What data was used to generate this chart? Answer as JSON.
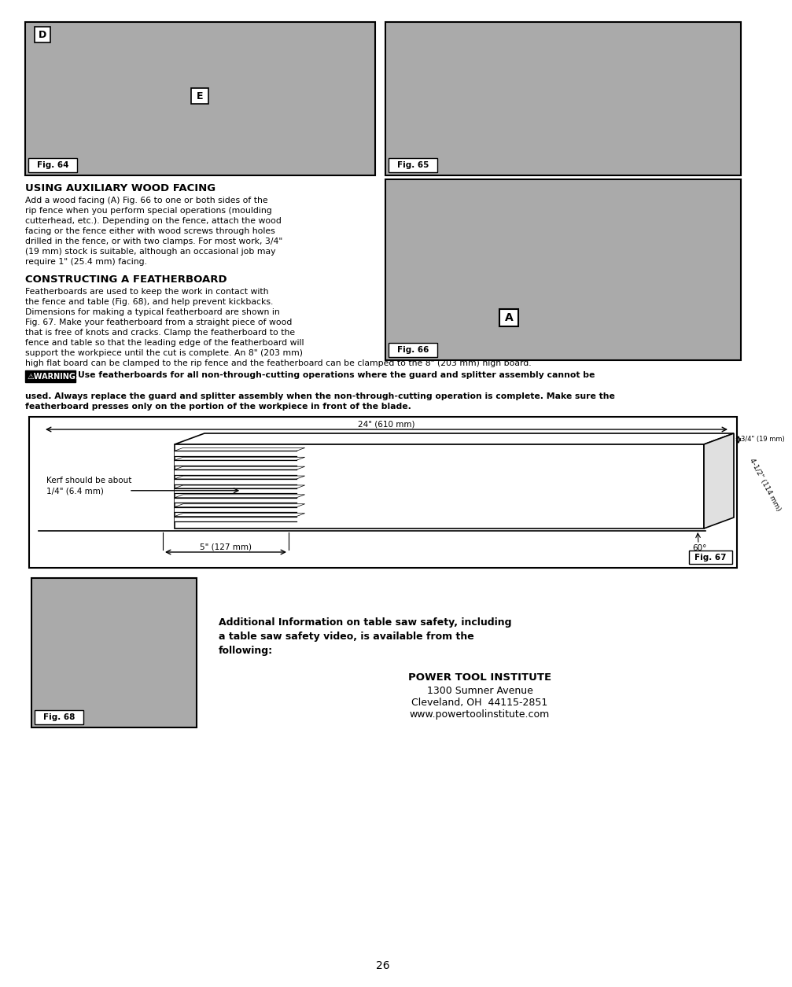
{
  "page_bg": "#ffffff",
  "border_color": "#000000",
  "page_number": "26",
  "section1_title": "USING AUXILIARY WOOD FACING",
  "section2_title": "CONSTRUCTING A FEATHERBOARD",
  "warning_label": "⚠WARNING:",
  "fig64_label": "Fig. 64",
  "fig65_label": "Fig. 65",
  "fig66_label": "Fig. 66",
  "fig67_label": "Fig. 67",
  "fig68_label": "Fig. 68",
  "label_D": "D",
  "label_E": "E",
  "label_A": "A",
  "dim_24": "24\" (610 mm)",
  "dim_5": "5\" (127 mm)",
  "dim_3_4": "3/4\" (19 mm)",
  "dim_4_1_2": "4-1/2\" (114 mm)",
  "dim_60": "60°",
  "kerf_text": "Kerf should be about\n1/4\" (6.4 mm)",
  "additional_info": "Additional Information on table saw safety, including\na table saw safety video, is available from the\nfollowing:",
  "institute_name": "POWER TOOL INSTITUTE",
  "institute_addr1": "1300 Sumner Avenue",
  "institute_addr2": "Cleveland, OH  44115-2851",
  "institute_url": "www.powertoolinstitute.com",
  "sec1_lines": [
    "Add a wood facing (A) Fig. 66 to one or both sides of the",
    "rip fence when you perform special operations (moulding",
    "cutterhead, etc.). Depending on the fence, attach the wood",
    "facing or the fence either with wood screws through holes",
    "drilled in the fence, or with two clamps. For most work, 3/4\"",
    "(19 mm) stock is suitable, although an occasional job may",
    "require 1\" (25.4 mm) facing."
  ],
  "sec2_lines": [
    "Featherboards are used to keep the work in contact with",
    "the fence and table (Fig. 68), and help prevent kickbacks.",
    "Dimensions for making a typical featherboard are shown in",
    "Fig. 67. Make your featherboard from a straight piece of wood",
    "that is free of knots and cracks. Clamp the featherboard to the",
    "fence and table so that the leading edge of the featherboard will",
    "support the workpiece until the cut is complete. An 8\" (203 mm)"
  ],
  "sec2_last_line": "high flat board can be clamped to the rip fence and the featherboard can be clamped to the 8\" (203 mm) high board.",
  "warn_lines": [
    "Use featherboards for all non-through-cutting operations where the guard and splitter assembly cannot be",
    "used. Always replace the guard and splitter assembly when the non-through-cutting operation is complete. Make sure the",
    "featherboard presses only on the portion of the workpiece in front of the blade."
  ]
}
